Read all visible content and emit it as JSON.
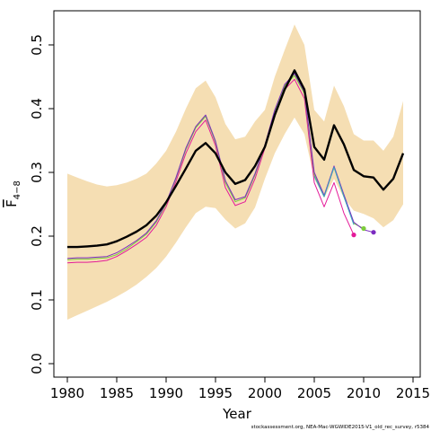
{
  "chart_data": {
    "type": "line",
    "xlabel": "Year",
    "ylabel_main": "F",
    "ylabel_sub": "4−8",
    "xlim": [
      1980,
      2014
    ],
    "ylim": [
      0,
      0.52
    ],
    "xticks": [
      1980,
      1985,
      1990,
      1995,
      2000,
      2005,
      2010,
      2015
    ],
    "yticks": [
      0.0,
      0.1,
      0.2,
      0.3,
      0.4,
      0.5
    ],
    "ytick_labels": [
      "0.0",
      "0.1",
      "0.2",
      "0.3",
      "0.4",
      "0.5"
    ],
    "credit": "stockassessment.org, NEA-Mac-WGWIDE2015-V1_old_rec_survey, r5384",
    "band": {
      "color": "#f5deb3",
      "x": [
        1980,
        1981,
        1982,
        1983,
        1984,
        1985,
        1986,
        1987,
        1988,
        1989,
        1990,
        1991,
        1992,
        1993,
        1994,
        1995,
        1996,
        1997,
        1998,
        1999,
        2000,
        2001,
        2002,
        2003,
        2004,
        2005,
        2006,
        2007,
        2008,
        2009,
        2010,
        2011,
        2012,
        2013,
        2014
      ],
      "lower": [
        0.069,
        0.076,
        0.083,
        0.09,
        0.097,
        0.105,
        0.114,
        0.124,
        0.136,
        0.15,
        0.168,
        0.19,
        0.214,
        0.236,
        0.246,
        0.244,
        0.226,
        0.212,
        0.22,
        0.245,
        0.29,
        0.33,
        0.36,
        0.386,
        0.36,
        0.29,
        0.26,
        0.29,
        0.26,
        0.24,
        0.235,
        0.228,
        0.214,
        0.225,
        0.25
      ],
      "upper": [
        0.298,
        0.292,
        0.286,
        0.281,
        0.278,
        0.28,
        0.284,
        0.29,
        0.298,
        0.314,
        0.334,
        0.364,
        0.4,
        0.432,
        0.444,
        0.418,
        0.376,
        0.352,
        0.356,
        0.38,
        0.398,
        0.45,
        0.492,
        0.532,
        0.5,
        0.398,
        0.38,
        0.436,
        0.404,
        0.36,
        0.35,
        0.35,
        0.334,
        0.356,
        0.412
      ]
    },
    "series": [
      {
        "color": "#000000",
        "x": [
          1980,
          1981,
          1982,
          1983,
          1984,
          1985,
          1986,
          1987,
          1988,
          1989,
          1990,
          1991,
          1992,
          1993,
          1994,
          1995,
          1996,
          1997,
          1998,
          1999,
          2000,
          2001,
          2002,
          2003,
          2004,
          2005,
          2006,
          2007,
          2008,
          2009,
          2010,
          2011,
          2012,
          2013,
          2014
        ],
        "values": [
          0.183,
          0.183,
          0.184,
          0.185,
          0.187,
          0.192,
          0.199,
          0.207,
          0.217,
          0.232,
          0.253,
          0.279,
          0.306,
          0.334,
          0.346,
          0.33,
          0.3,
          0.282,
          0.288,
          0.31,
          0.34,
          0.39,
          0.43,
          0.46,
          0.43,
          0.34,
          0.32,
          0.374,
          0.344,
          0.304,
          0.294,
          0.292,
          0.273,
          0.29,
          0.33
        ]
      },
      {
        "color": "#e41a99",
        "x": [
          1980,
          1981,
          1982,
          1983,
          1984,
          1985,
          1986,
          1987,
          1988,
          1989,
          1990,
          1991,
          1992,
          1993,
          1994,
          1995,
          1996,
          1997,
          1998,
          1999,
          2000,
          2001,
          2002,
          2003,
          2004,
          2005,
          2006,
          2007,
          2008,
          2009
        ],
        "values": [
          0.158,
          0.159,
          0.159,
          0.16,
          0.162,
          0.168,
          0.177,
          0.187,
          0.198,
          0.217,
          0.246,
          0.286,
          0.33,
          0.364,
          0.382,
          0.342,
          0.276,
          0.248,
          0.254,
          0.29,
          0.338,
          0.392,
          0.43,
          0.446,
          0.416,
          0.284,
          0.246,
          0.284,
          0.236,
          0.202
        ],
        "end_marker": true
      },
      {
        "color": "#7ccd3a",
        "x": [
          1980,
          1981,
          1982,
          1983,
          1984,
          1985,
          1986,
          1987,
          1988,
          1989,
          1990,
          1991,
          1992,
          1993,
          1994,
          1995,
          1996,
          1997,
          1998,
          1999,
          2000,
          2001,
          2002,
          2003,
          2004,
          2005,
          2006,
          2007,
          2008,
          2009,
          2010
        ],
        "values": [
          0.163,
          0.164,
          0.164,
          0.165,
          0.166,
          0.171,
          0.18,
          0.191,
          0.203,
          0.222,
          0.25,
          0.291,
          0.336,
          0.37,
          0.388,
          0.347,
          0.284,
          0.254,
          0.26,
          0.296,
          0.342,
          0.396,
          0.436,
          0.452,
          0.424,
          0.296,
          0.262,
          0.308,
          0.262,
          0.22,
          0.212
        ],
        "end_marker": true
      },
      {
        "color": "#7b2bc0",
        "x": [
          1980,
          1981,
          1982,
          1983,
          1984,
          1985,
          1986,
          1987,
          1988,
          1989,
          1990,
          1991,
          1992,
          1993,
          1994,
          1995,
          1996,
          1997,
          1998,
          1999,
          2000,
          2001,
          2002,
          2003,
          2004,
          2005,
          2006,
          2007,
          2008,
          2009,
          2010,
          2011
        ],
        "values": [
          0.165,
          0.166,
          0.166,
          0.167,
          0.168,
          0.174,
          0.183,
          0.193,
          0.205,
          0.224,
          0.252,
          0.292,
          0.338,
          0.372,
          0.39,
          0.349,
          0.287,
          0.257,
          0.262,
          0.298,
          0.343,
          0.398,
          0.438,
          0.455,
          0.426,
          0.3,
          0.264,
          0.31,
          0.265,
          0.222,
          0.21,
          0.206
        ],
        "end_marker": true
      },
      {
        "color": "#3aa6c2",
        "x": [
          2005,
          2006,
          2007,
          2008,
          2009
        ],
        "values": [
          0.294,
          0.262,
          0.308,
          0.262,
          0.218
        ],
        "end_marker": false
      }
    ]
  }
}
